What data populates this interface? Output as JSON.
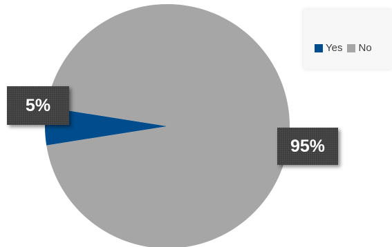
{
  "chart_data": {
    "type": "pie",
    "categories": [
      "Yes",
      "No"
    ],
    "values": [
      5,
      95
    ],
    "data_labels": [
      "5%",
      "95%"
    ],
    "colors": [
      "#004c8c",
      "#a6a6a6"
    ],
    "legend": {
      "placement": "top-right",
      "entries": [
        "Yes",
        "No"
      ]
    },
    "title": ""
  }
}
